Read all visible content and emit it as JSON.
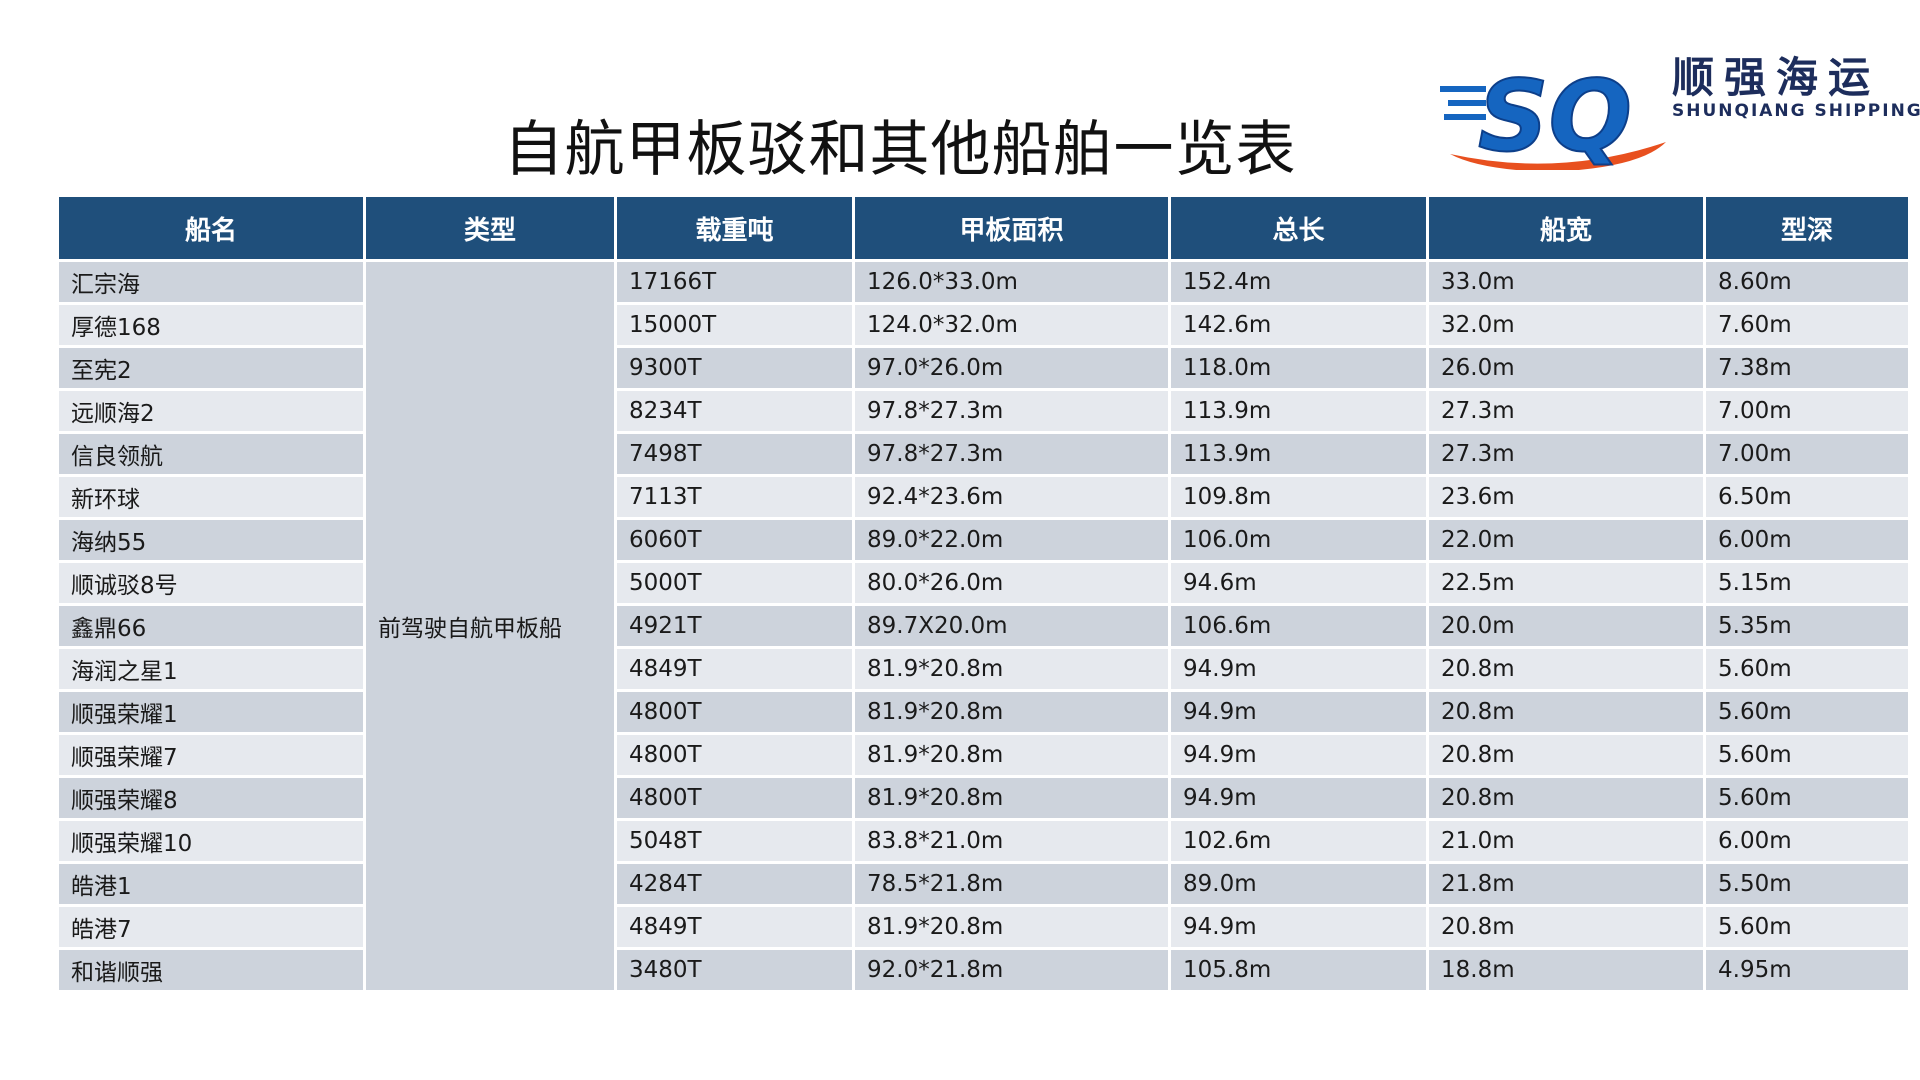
{
  "title": "自航甲板驳和其他船舶一览表",
  "logo": {
    "mark": "SQ",
    "cn": "顺强海运",
    "en": "SHUNQIANG SHIPPING"
  },
  "colors": {
    "header_bg": "#1f4f7b",
    "row_dark": "#cdd3dc",
    "row_light": "#e6e9ee",
    "logo_blue": "#1565c0",
    "logo_orange": "#e8501f"
  },
  "table": {
    "headers": [
      "船名",
      "类型",
      "载重吨",
      "甲板面积",
      "总长",
      "船宽",
      "型深"
    ],
    "type": "前驾驶自航甲板船",
    "rows": [
      [
        "汇宗海",
        "17166T",
        "126.0*33.0m",
        "152.4m",
        "33.0m",
        "8.60m"
      ],
      [
        "厚德168",
        "15000T",
        "124.0*32.0m",
        "142.6m",
        "32.0m",
        "7.60m"
      ],
      [
        "至宪2",
        "9300T",
        "97.0*26.0m",
        "118.0m",
        "26.0m",
        "7.38m"
      ],
      [
        "远顺海2",
        "8234T",
        "97.8*27.3m",
        "113.9m",
        "27.3m",
        "7.00m"
      ],
      [
        "信良领航",
        "7498T",
        "97.8*27.3m",
        "113.9m",
        "27.3m",
        "7.00m"
      ],
      [
        "新环球",
        "7113T",
        "92.4*23.6m",
        "109.8m",
        "23.6m",
        "6.50m"
      ],
      [
        "海纳55",
        "6060T",
        "89.0*22.0m",
        "106.0m",
        "22.0m",
        "6.00m"
      ],
      [
        "顺诚驳8号",
        "5000T",
        "80.0*26.0m",
        "94.6m",
        "22.5m",
        "5.15m"
      ],
      [
        "鑫鼎66",
        "4921T",
        "89.7X20.0m",
        "106.6m",
        "20.0m",
        "5.35m"
      ],
      [
        "海润之星1",
        "4849T",
        "81.9*20.8m",
        "94.9m",
        "20.8m",
        "5.60m"
      ],
      [
        "顺强荣耀1",
        "4800T",
        "81.9*20.8m",
        "94.9m",
        "20.8m",
        "5.60m"
      ],
      [
        "顺强荣耀7",
        "4800T",
        "81.9*20.8m",
        "94.9m",
        "20.8m",
        "5.60m"
      ],
      [
        "顺强荣耀8",
        "4800T",
        "81.9*20.8m",
        "94.9m",
        "20.8m",
        "5.60m"
      ],
      [
        "顺强荣耀10",
        "5048T",
        "83.8*21.0m",
        "102.6m",
        "21.0m",
        "6.00m"
      ],
      [
        "皓港1",
        "4284T",
        "78.5*21.8m",
        "89.0m",
        "21.8m",
        "5.50m"
      ],
      [
        "皓港7",
        "4849T",
        "81.9*20.8m",
        "94.9m",
        "20.8m",
        "5.60m"
      ],
      [
        "和谐顺强",
        "3480T",
        "92.0*21.8m",
        "105.8m",
        "18.8m",
        "4.95m"
      ]
    ]
  }
}
